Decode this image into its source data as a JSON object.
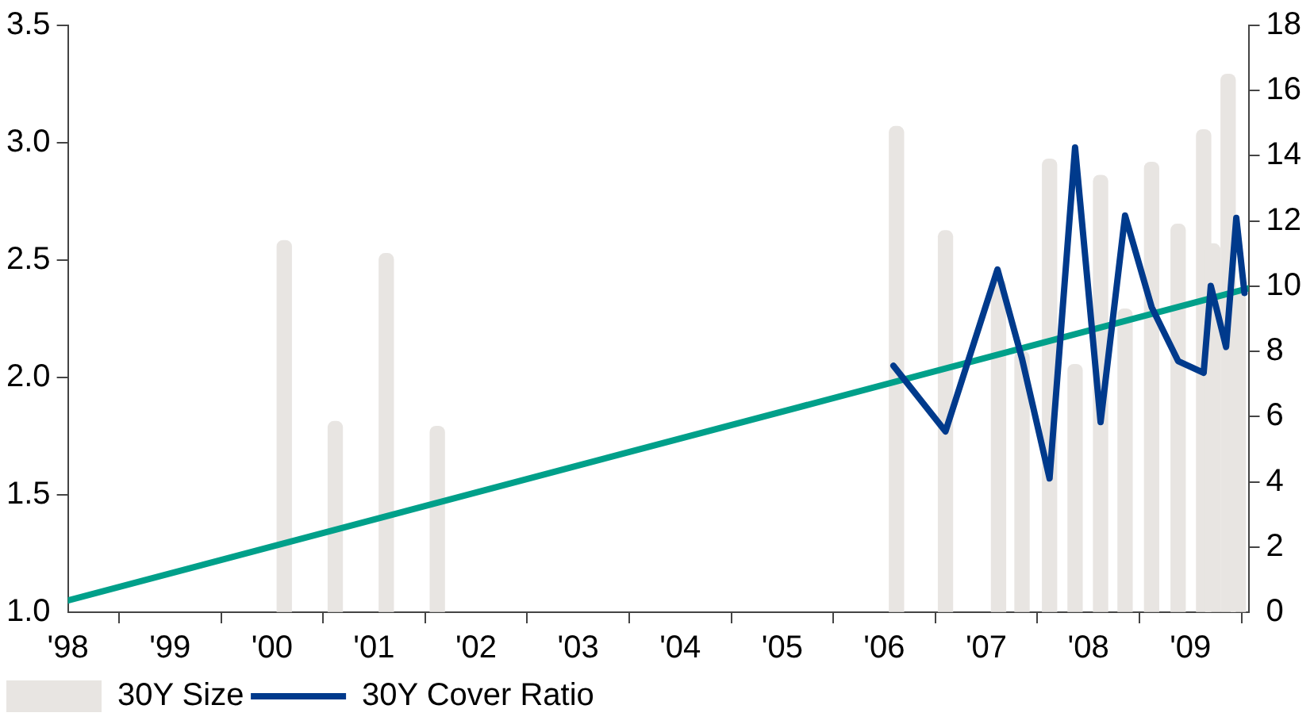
{
  "chart_data": {
    "type": "bar",
    "legend": "bottom left",
    "grid": false,
    "marker": "none",
    "line_style": "solid",
    "xlim": [
      1998,
      2009.57
    ],
    "xticks": [
      {
        "value": 1998,
        "label": "'98"
      },
      {
        "value": 1999,
        "label": "'99"
      },
      {
        "value": 2000,
        "label": "'00"
      },
      {
        "value": 2001,
        "label": "'01"
      },
      {
        "value": 2002,
        "label": "'02"
      },
      {
        "value": 2003,
        "label": "'03"
      },
      {
        "value": 2004,
        "label": "'04"
      },
      {
        "value": 2005,
        "label": "'05"
      },
      {
        "value": 2006,
        "label": "'06"
      },
      {
        "value": 2007,
        "label": "'07"
      },
      {
        "value": 2008,
        "label": "'08"
      },
      {
        "value": 2009,
        "label": "'09"
      }
    ],
    "ylim": [
      1,
      3.5
    ],
    "yticks": [
      {
        "value": 1,
        "label": "1.0"
      },
      {
        "value": 1.5,
        "label": "1.5"
      },
      {
        "value": 2,
        "label": "2.0"
      },
      {
        "value": 2.5,
        "label": "2.5"
      },
      {
        "value": 3,
        "label": "3.0"
      },
      {
        "value": 3.5,
        "label": "3.5"
      }
    ],
    "y2lim": [
      0,
      18
    ],
    "y2ticks": [
      0,
      2,
      4,
      6,
      8,
      10,
      12,
      14,
      16,
      18
    ],
    "series": [
      {
        "name": "30Y Size",
        "axis": "y2",
        "color": "#e8e5e2",
        "x": [
          2000.12,
          2000.62,
          2001.12,
          2001.62,
          2006.12,
          2006.6,
          2007.12,
          2007.35,
          2007.62,
          2007.87,
          2008.12,
          2008.36,
          2008.62,
          2008.88,
          2009.13,
          2009.22,
          2009.37,
          2009.47
        ],
        "values": [
          11.4,
          5.85,
          11,
          5.7,
          14.9,
          11.7,
          10.2,
          8,
          13.9,
          7.6,
          13.4,
          9.3,
          13.8,
          11.9,
          14.8,
          11.3,
          16.5,
          9.8
        ]
      },
      {
        "name": "30Y Cover Ratio",
        "type": "line",
        "color": "#003a8c",
        "x": [
          2006.09,
          2006.6,
          2007.11,
          2007.35,
          2007.62,
          2007.87,
          2008.12,
          2008.36,
          2008.62,
          2008.88,
          2009.13,
          2009.2,
          2009.35,
          2009.45,
          2009.53
        ],
        "values": [
          2.05,
          1.77,
          2.46,
          2.08,
          1.57,
          2.98,
          1.81,
          2.69,
          2.3,
          2.07,
          2.02,
          2.39,
          2.13,
          2.68,
          2.36
        ]
      },
      {
        "type": "line",
        "color": "#00a08a",
        "x": [
          1998,
          2009.57
        ],
        "values": [
          1.05,
          2.38
        ]
      }
    ]
  }
}
